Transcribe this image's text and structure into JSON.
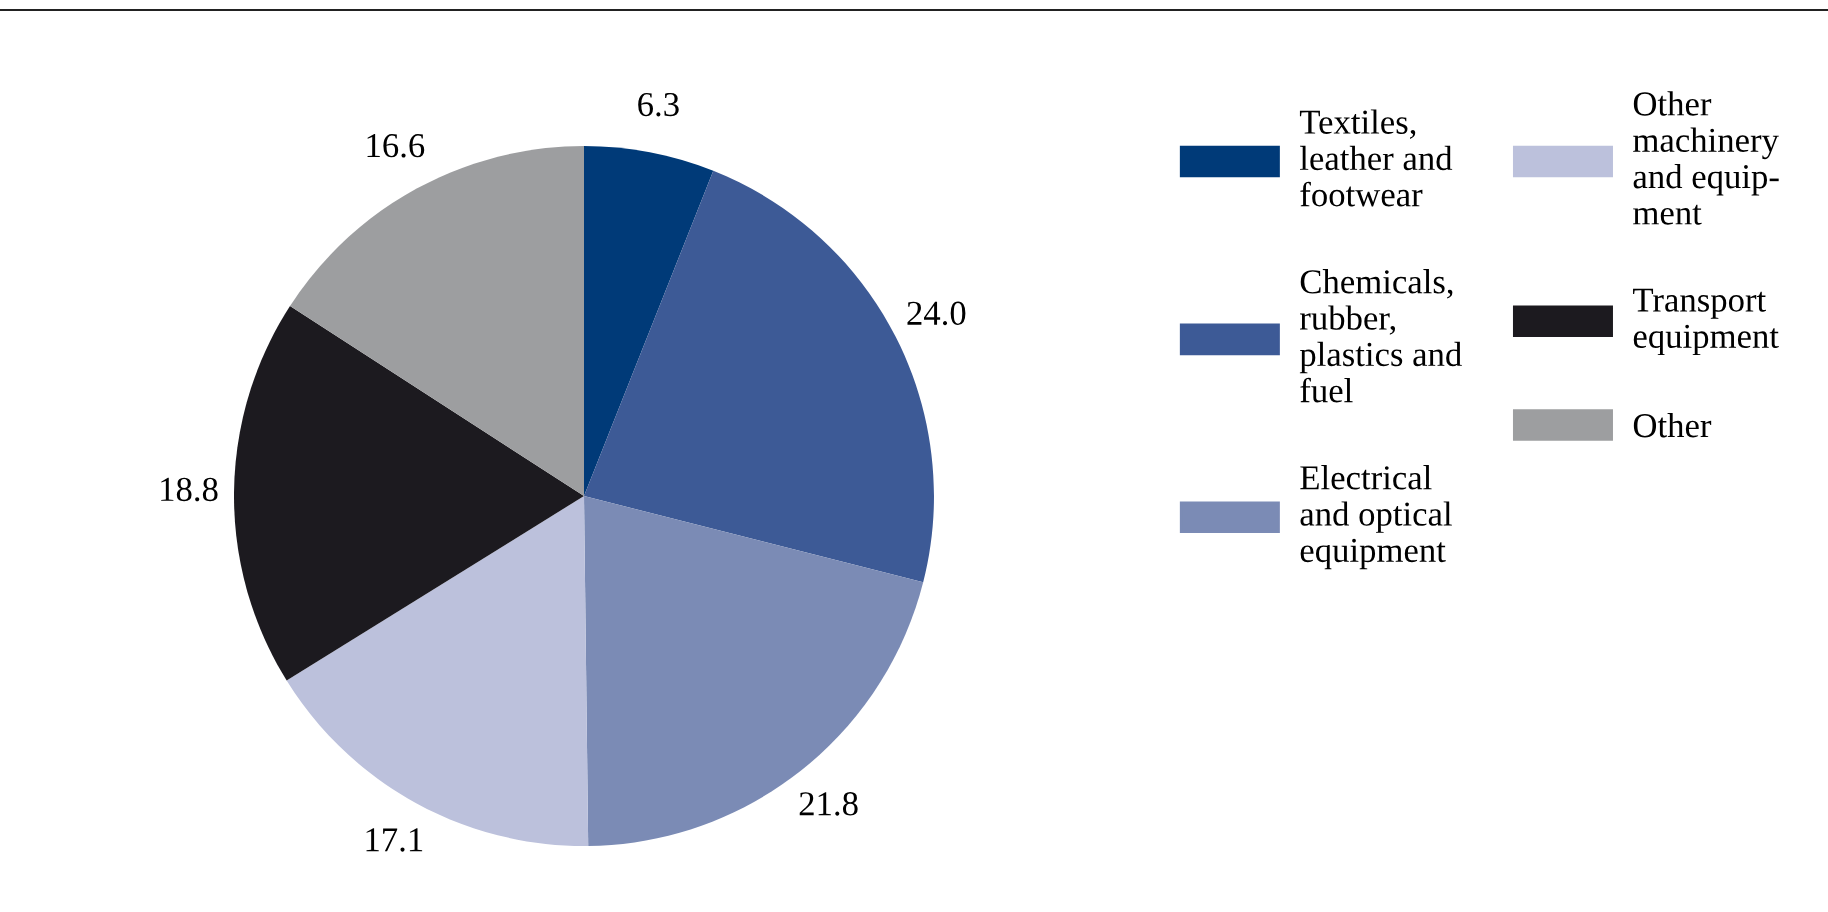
{
  "chart_data": {
    "type": "pie",
    "categories": [
      "Textiles,\nleather and\nfootwear",
      "Chemicals,\nrubber,\nplastics and\nfuel",
      "Electrical\nand optical\nequipment",
      "Other\nmachinery\nand equip-\nment",
      "Transport\nequipment",
      "Other"
    ],
    "values": [
      6.3,
      24.0,
      21.8,
      17.1,
      18.8,
      16.6
    ],
    "colors": [
      "#003a78",
      "#3d5a96",
      "#7b8bb5",
      "#bcc1dc",
      "#1c1a1f",
      "#9d9ea0"
    ],
    "value_labels": [
      "6.3",
      "24.0",
      "21.8",
      "17.1",
      "18.8",
      "16.6"
    ],
    "legend": "right"
  }
}
